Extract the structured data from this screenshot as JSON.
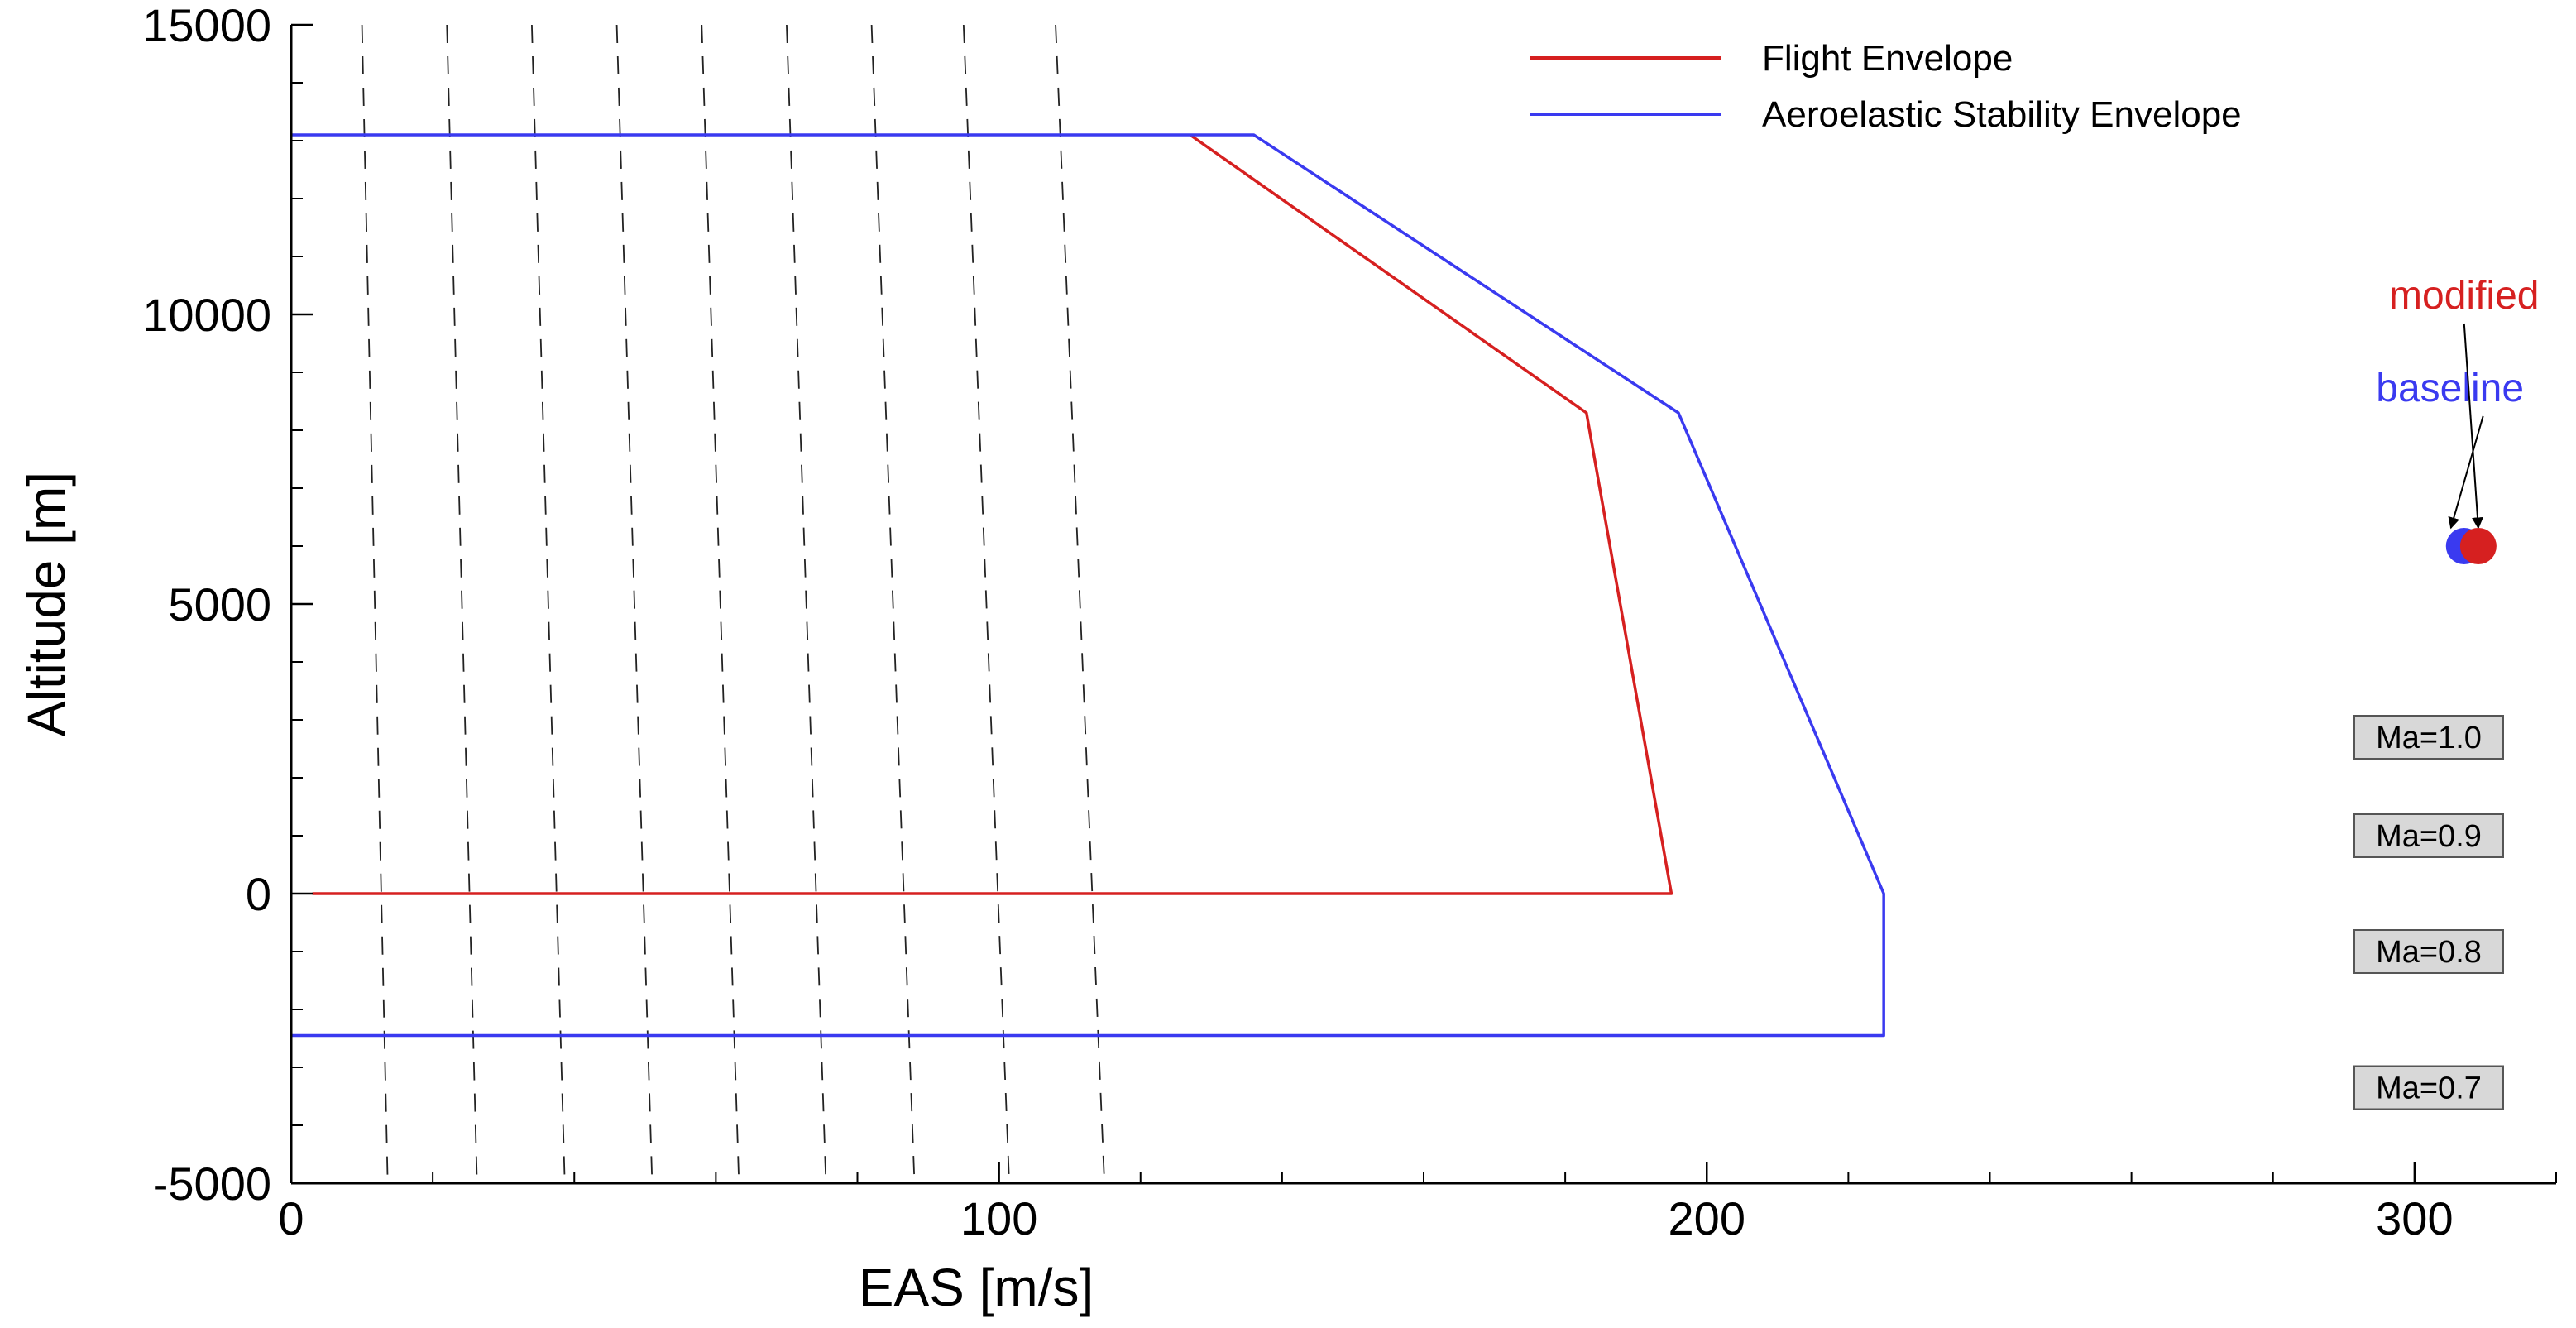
{
  "chart_data": {
    "type": "line",
    "title": "",
    "xlabel": "EAS [m/s]",
    "ylabel": "Altitude [m]",
    "xlim": [
      0,
      320
    ],
    "ylim": [
      -5000,
      15000
    ],
    "x_ticks": [
      0,
      100,
      200,
      300
    ],
    "y_ticks": [
      -5000,
      0,
      5000,
      10000,
      15000
    ],
    "grid": false,
    "legend_position": "top-right",
    "series": [
      {
        "name": "Flight Envelope",
        "color": "#d62020",
        "points": [
          [
            3,
            0
          ],
          [
            195,
            0
          ],
          [
            183,
            8300
          ],
          [
            127,
            13100
          ]
        ]
      },
      {
        "name": "Aeroelastic Stability Envelope",
        "color": "#3a3af0",
        "points": [
          [
            0,
            13100
          ],
          [
            136,
            13100
          ],
          [
            196,
            8300
          ],
          [
            225,
            0
          ],
          [
            225,
            -2450
          ],
          [
            0,
            -2450
          ]
        ]
      }
    ],
    "mach_lines": [
      {
        "label": "Ma=1.0",
        "x0": 108,
        "slope": -2.9,
        "labeled": true,
        "label_x": 302,
        "label_y": 2700
      },
      {
        "label": "Ma=0.9",
        "x0": 95,
        "slope": -3.1,
        "labeled": true,
        "label_x": 302,
        "label_y": 1000
      },
      {
        "label": "Ma=0.8",
        "x0": 82,
        "slope": -3.3,
        "labeled": true,
        "label_x": 302,
        "label_y": -1000
      },
      {
        "label": "Ma=0.7",
        "x0": 70,
        "slope": -3.6,
        "labeled": true,
        "label_x": 302,
        "label_y": -3350
      },
      {
        "label": "",
        "x0": 58,
        "slope": -3.8,
        "labeled": false
      },
      {
        "label": "",
        "x0": 46,
        "slope": -4.0,
        "labeled": false
      },
      {
        "label": "",
        "x0": 34,
        "slope": -4.3,
        "labeled": false
      },
      {
        "label": "",
        "x0": 22,
        "slope": -4.7,
        "labeled": false
      },
      {
        "label": "",
        "x0": 10,
        "slope": -5.5,
        "labeled": false
      }
    ],
    "points": [
      {
        "name": "baseline",
        "x": 307,
        "y": 6000,
        "color": "#3a3af0"
      },
      {
        "name": "modified",
        "x": 309,
        "y": 6000,
        "color": "#d62020"
      }
    ],
    "point_label_positions": {
      "baseline": {
        "x": 305,
        "y": 8500
      },
      "modified": {
        "x": 307,
        "y": 10100
      }
    }
  }
}
